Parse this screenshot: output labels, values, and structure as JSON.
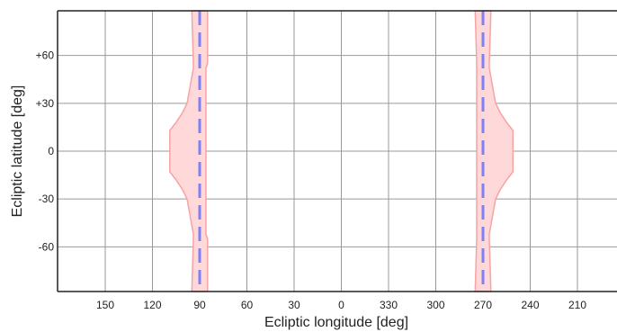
{
  "chart_data": {
    "type": "area",
    "title": "",
    "xlabel": "Ecliptic longitude [deg]",
    "ylabel": "Ecliptic latitude [deg]",
    "x_axis": {
      "direction": "decreasing-left-to-right",
      "ticks": [
        150,
        120,
        90,
        60,
        30,
        0,
        330,
        300,
        270,
        240,
        210
      ],
      "tick_labels": [
        "150",
        "120",
        "90",
        "60",
        "30",
        "0",
        "330",
        "300",
        "270",
        "240",
        "210"
      ]
    },
    "y_axis": {
      "ylim": [
        -88,
        88
      ],
      "ticks": [
        60,
        30,
        0,
        -30,
        -60
      ],
      "tick_labels": [
        "+60",
        "+30",
        "0",
        "-30",
        "-60"
      ]
    },
    "grid": true,
    "colors": {
      "band_fill": "#ffd9d9",
      "band_edge": "#f7a3a3",
      "center_line": "#8080f0",
      "grid": "#999999",
      "axes": "#222222"
    },
    "series": [
      {
        "kind": "band",
        "center": 90,
        "points": [
          {
            "lat": 88,
            "left": 95,
            "right": 85
          },
          {
            "lat": 55,
            "left": 94,
            "right": 85
          },
          {
            "lat": 52,
            "left": 94,
            "right": 86
          },
          {
            "lat": 30,
            "left": 98,
            "right": 86
          },
          {
            "lat": 24,
            "left": 101,
            "right": 86
          },
          {
            "lat": 18,
            "left": 105,
            "right": 86
          },
          {
            "lat": 13,
            "left": 109,
            "right": 86
          },
          {
            "lat": -13,
            "left": 109,
            "right": 86
          },
          {
            "lat": -18,
            "left": 105,
            "right": 86
          },
          {
            "lat": -24,
            "left": 101,
            "right": 86
          },
          {
            "lat": -30,
            "left": 98,
            "right": 86
          },
          {
            "lat": -52,
            "left": 94,
            "right": 86
          },
          {
            "lat": -55,
            "left": 94,
            "right": 85
          },
          {
            "lat": -88,
            "left": 95,
            "right": 85
          }
        ]
      },
      {
        "kind": "band",
        "center": 270,
        "points": [
          {
            "lat": 88,
            "left": 275,
            "right": 265
          },
          {
            "lat": 55,
            "left": 274,
            "right": 266
          },
          {
            "lat": 52,
            "left": 274,
            "right": 266
          },
          {
            "lat": 30,
            "left": 274,
            "right": 262
          },
          {
            "lat": 24,
            "left": 274,
            "right": 259
          },
          {
            "lat": 18,
            "left": 274,
            "right": 255
          },
          {
            "lat": 13,
            "left": 274,
            "right": 251
          },
          {
            "lat": -13,
            "left": 274,
            "right": 251
          },
          {
            "lat": -18,
            "left": 274,
            "right": 255
          },
          {
            "lat": -24,
            "left": 274,
            "right": 259
          },
          {
            "lat": -30,
            "left": 274,
            "right": 262
          },
          {
            "lat": -52,
            "left": 274,
            "right": 266
          },
          {
            "lat": -55,
            "left": 274,
            "right": 266
          },
          {
            "lat": -88,
            "left": 275,
            "right": 265
          }
        ]
      }
    ]
  }
}
